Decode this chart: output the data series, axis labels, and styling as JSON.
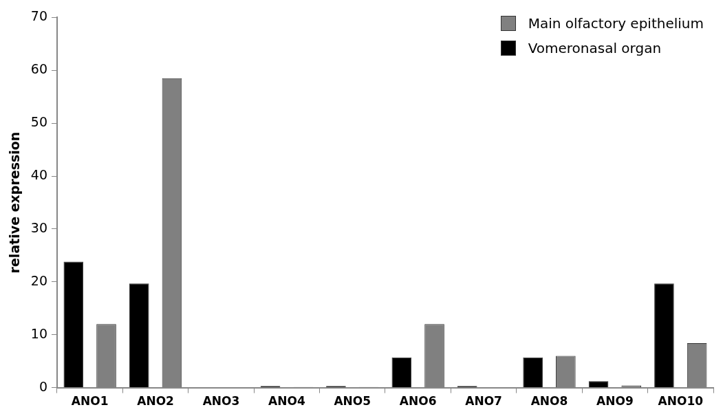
{
  "chart_data": {
    "type": "bar",
    "ylabel": "relative expression",
    "categories": [
      "ANO1",
      "ANO2",
      "ANO3",
      "ANO4",
      "ANO5",
      "ANO6",
      "ANO7",
      "ANO8",
      "ANO9",
      "ANO10"
    ],
    "series": [
      {
        "name": "Vomeronasal organ",
        "color": "#000000",
        "values": [
          23.8,
          19.7,
          0,
          0.3,
          0.3,
          5.7,
          0.3,
          5.7,
          1.2,
          19.7
        ]
      },
      {
        "name": "Main olfactory epithelium",
        "color": "#808080",
        "values": [
          12.0,
          58.5,
          0,
          0.1,
          0.1,
          12.0,
          0,
          6.0,
          0.4,
          8.4
        ]
      }
    ],
    "ylim": [
      0,
      70
    ],
    "yticks": [
      0,
      10,
      20,
      30,
      40,
      50,
      60,
      70
    ],
    "grid": false,
    "legend": "top right"
  }
}
